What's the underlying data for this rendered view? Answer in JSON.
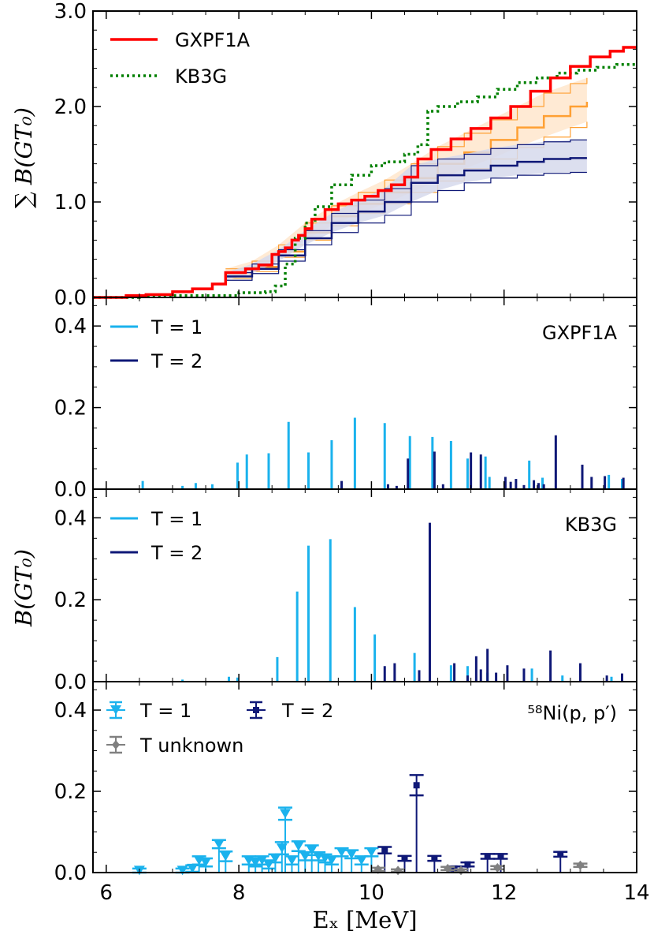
{
  "colors": {
    "gxpf1a": "#ff0000",
    "kb3g": "#008000",
    "t1": "#1ab2ed",
    "t2": "#0f1877",
    "tunk": "#808080",
    "band_orange": "#ffa033",
    "band_fill_orange": "#ffe6cc",
    "band_navy_fill": "#d6d9ec"
  },
  "chart_data": [
    {
      "type": "line",
      "panel": "cumulative",
      "xlim": [
        5.8,
        14
      ],
      "ylim": [
        0,
        3.0
      ],
      "yticks": [
        "0.0",
        "1.0",
        "2.0",
        "3.0"
      ],
      "ylabel": "∑ B(GT₀)",
      "legend_position": "top-left",
      "series": [
        {
          "name": "GXPF1A",
          "style": "solid",
          "x": [
            5.8,
            6.3,
            6.6,
            7.0,
            7.3,
            7.6,
            7.8,
            8.1,
            8.3,
            8.5,
            8.6,
            8.7,
            8.8,
            8.9,
            9.0,
            9.1,
            9.3,
            9.5,
            9.7,
            9.9,
            10.1,
            10.3,
            10.5,
            10.7,
            10.9,
            11.2,
            11.5,
            11.8,
            12.1,
            12.4,
            12.7,
            13.0,
            13.3,
            13.6,
            13.8,
            14.0
          ],
          "y": [
            0,
            0.02,
            0.03,
            0.06,
            0.09,
            0.14,
            0.26,
            0.3,
            0.34,
            0.45,
            0.48,
            0.52,
            0.6,
            0.65,
            0.72,
            0.82,
            0.92,
            0.98,
            1.02,
            1.06,
            1.12,
            1.18,
            1.26,
            1.45,
            1.55,
            1.66,
            1.77,
            1.88,
            2.0,
            2.16,
            2.3,
            2.42,
            2.52,
            2.58,
            2.62,
            2.62
          ]
        },
        {
          "name": "KB3G",
          "style": "dotted",
          "x": [
            5.8,
            6.5,
            7.0,
            7.5,
            7.8,
            8.0,
            8.4,
            8.55,
            8.7,
            8.85,
            9.0,
            9.15,
            9.4,
            9.7,
            10.0,
            10.2,
            10.5,
            10.7,
            10.85,
            11.0,
            11.3,
            11.6,
            11.9,
            12.2,
            12.5,
            12.8,
            13.1,
            13.4,
            13.7,
            14.0
          ],
          "y": [
            0,
            0.01,
            0.02,
            0.02,
            0.02,
            0.05,
            0.06,
            0.12,
            0.35,
            0.62,
            0.78,
            0.95,
            1.18,
            1.28,
            1.38,
            1.42,
            1.5,
            1.6,
            1.95,
            2.0,
            2.05,
            2.1,
            2.18,
            2.25,
            2.3,
            2.35,
            2.38,
            2.41,
            2.44,
            2.45
          ]
        },
        {
          "name": "58Ni(p,p') band",
          "style": "band",
          "color": "orange",
          "x": [
            7.8,
            8.2,
            8.6,
            9.0,
            9.4,
            9.8,
            10.2,
            10.6,
            11.0,
            11.4,
            11.8,
            12.2,
            12.6,
            13.0,
            13.25
          ],
          "y": [
            0.25,
            0.32,
            0.48,
            0.68,
            0.85,
            0.98,
            1.1,
            1.25,
            1.4,
            1.52,
            1.65,
            1.78,
            1.9,
            2.0,
            2.05
          ],
          "ylo": [
            0.2,
            0.27,
            0.42,
            0.6,
            0.75,
            0.88,
            0.98,
            1.1,
            1.22,
            1.35,
            1.45,
            1.57,
            1.68,
            1.78,
            1.84
          ],
          "yhi": [
            0.3,
            0.38,
            0.55,
            0.78,
            0.96,
            1.1,
            1.23,
            1.4,
            1.58,
            1.72,
            1.86,
            2.0,
            2.14,
            2.24,
            2.3
          ]
        },
        {
          "name": "T=2 band",
          "style": "band",
          "color": "navy",
          "x": [
            7.8,
            8.2,
            8.6,
            9.0,
            9.4,
            9.8,
            10.2,
            10.6,
            11.0,
            11.4,
            11.8,
            12.2,
            12.6,
            13.0,
            13.25
          ],
          "y": [
            0.22,
            0.3,
            0.44,
            0.62,
            0.78,
            0.9,
            1.0,
            1.2,
            1.28,
            1.33,
            1.38,
            1.42,
            1.45,
            1.46,
            1.46
          ],
          "ylo": [
            0.18,
            0.25,
            0.38,
            0.55,
            0.68,
            0.78,
            0.86,
            1.0,
            1.12,
            1.2,
            1.25,
            1.28,
            1.3,
            1.31,
            1.31
          ],
          "yhi": [
            0.26,
            0.35,
            0.5,
            0.7,
            0.88,
            1.02,
            1.14,
            1.38,
            1.45,
            1.5,
            1.56,
            1.6,
            1.63,
            1.65,
            1.65
          ]
        }
      ]
    },
    {
      "type": "bar",
      "panel": "GXPF1A",
      "label": "GXPF1A",
      "xlim": [
        5.8,
        14
      ],
      "ylim": [
        0,
        0.47
      ],
      "yticks": [
        "0.0",
        "0.2",
        "0.4"
      ],
      "legend": [
        "T = 1",
        "T = 2"
      ],
      "t1": {
        "x": [
          6.55,
          7.15,
          7.35,
          7.6,
          7.98,
          8.12,
          8.45,
          8.75,
          9.05,
          9.4,
          9.75,
          10.2,
          10.58,
          10.92,
          11.2,
          11.45,
          11.72,
          11.78,
          12.38,
          12.58,
          13.58,
          13.78
        ],
        "y": [
          0.02,
          0.008,
          0.015,
          0.012,
          0.065,
          0.085,
          0.088,
          0.165,
          0.09,
          0.12,
          0.175,
          0.162,
          0.13,
          0.128,
          0.118,
          0.075,
          0.08,
          0.03,
          0.07,
          0.028,
          0.035,
          0.025
        ]
      },
      "t2": {
        "x": [
          9.55,
          10.25,
          10.38,
          10.55,
          10.95,
          11.08,
          11.5,
          11.65,
          12.02,
          12.1,
          12.18,
          12.3,
          12.45,
          12.52,
          12.6,
          12.78,
          13.18,
          13.32,
          13.52,
          13.8
        ],
        "y": [
          0.02,
          0.012,
          0.008,
          0.075,
          0.092,
          0.012,
          0.09,
          0.085,
          0.03,
          0.018,
          0.025,
          0.01,
          0.022,
          0.015,
          0.012,
          0.132,
          0.06,
          0.03,
          0.032,
          0.028
        ]
      }
    },
    {
      "type": "bar",
      "panel": "KB3G",
      "label": "KB3G",
      "xlim": [
        5.8,
        14
      ],
      "ylim": [
        0,
        0.47
      ],
      "yticks": [
        "0.0",
        "0.2",
        "0.4"
      ],
      "legend": [
        "T = 1",
        "T = 2"
      ],
      "ylabel": "B(GT₀)",
      "t1": {
        "x": [
          7.15,
          7.85,
          7.98,
          8.58,
          8.88,
          9.05,
          9.38,
          9.75,
          10.05,
          10.65,
          11.2,
          11.45,
          11.75,
          12.42,
          12.88,
          13.62
        ],
        "y": [
          0.005,
          0.012,
          0.01,
          0.06,
          0.22,
          0.332,
          0.348,
          0.182,
          0.115,
          0.07,
          0.04,
          0.038,
          0.022,
          0.032,
          0.015,
          0.012
        ],
        "_last_x_text_note": "none"
      },
      "t2": {
        "x": [
          10.2,
          10.35,
          10.72,
          10.88,
          11.25,
          11.45,
          11.58,
          11.65,
          11.75,
          11.88,
          12.05,
          12.3,
          12.7,
          13.15,
          13.55,
          13.78
        ],
        "y": [
          0.038,
          0.045,
          0.028,
          0.388,
          0.045,
          0.015,
          0.062,
          0.03,
          0.08,
          0.022,
          0.04,
          0.032,
          0.076,
          0.045,
          0.015,
          0.02
        ]
      }
    },
    {
      "type": "scatter",
      "panel": "58Ni(p,p')",
      "label": "⁵⁸Ni(p, p′)",
      "xlim": [
        5.8,
        14
      ],
      "ylim": [
        0,
        0.47
      ],
      "yticks": [
        "0.0",
        "0.2",
        "0.4"
      ],
      "xticks": [
        "6",
        "8",
        "10",
        "12",
        "14"
      ],
      "xlabel": "Eₓ   [MeV]",
      "legend": [
        "T = 1",
        "T = 2",
        "T unknown"
      ],
      "t1": {
        "x": [
          6.5,
          7.15,
          7.3,
          7.4,
          7.5,
          7.7,
          7.8,
          8.15,
          8.25,
          8.35,
          8.45,
          8.55,
          8.65,
          8.7,
          8.8,
          8.9,
          9.0,
          9.1,
          9.2,
          9.3,
          9.4,
          9.55,
          9.7,
          9.85,
          10.0
        ],
        "y": [
          0.005,
          0.005,
          0.01,
          0.03,
          0.025,
          0.07,
          0.04,
          0.03,
          0.025,
          0.03,
          0.02,
          0.035,
          0.06,
          0.145,
          0.03,
          0.065,
          0.04,
          0.055,
          0.04,
          0.035,
          0.03,
          0.05,
          0.045,
          0.03,
          0.05
        ],
        "err": [
          0.005,
          0.005,
          0.008,
          0.01,
          0.01,
          0.01,
          0.012,
          0.01,
          0.01,
          0.01,
          0.01,
          0.01,
          0.015,
          0.015,
          0.01,
          0.012,
          0.01,
          0.012,
          0.01,
          0.01,
          0.01,
          0.01,
          0.01,
          0.01,
          0.01
        ]
      },
      "t2": {
        "x": [
          10.2,
          10.5,
          10.68,
          10.95,
          11.25,
          11.45,
          11.75,
          11.95,
          12.85
        ],
        "y": [
          0.055,
          0.035,
          0.215,
          0.035,
          0.01,
          0.02,
          0.04,
          0.04,
          0.045
        ],
        "err": [
          0.008,
          0.006,
          0.025,
          0.006,
          0.005,
          0.005,
          0.006,
          0.006,
          0.006
        ]
      },
      "tunk": {
        "x": [
          10.1,
          10.4,
          11.15,
          11.35,
          11.9,
          13.15
        ],
        "y": [
          0.008,
          0.005,
          0.01,
          0.005,
          0.012,
          0.018
        ],
        "err": [
          0.004,
          0.003,
          0.004,
          0.003,
          0.004,
          0.004
        ]
      }
    }
  ]
}
